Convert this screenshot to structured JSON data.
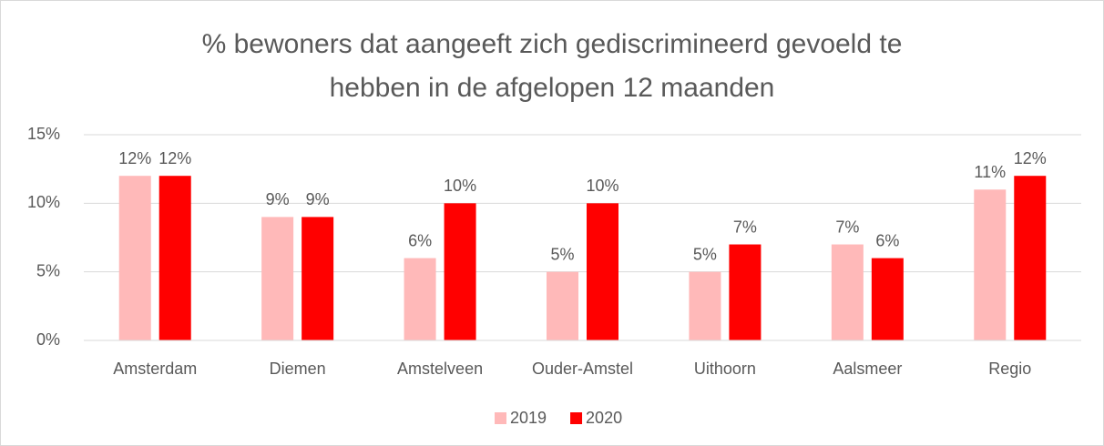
{
  "chart_data": {
    "type": "bar",
    "title": [
      "% bewoners dat aangeeft zich gediscrimineerd gevoeld te",
      "hebben in de afgelopen 12 maanden"
    ],
    "categories": [
      "Amsterdam",
      "Diemen",
      "Amstelveen",
      "Ouder-Amstel",
      "Uithoorn",
      "Aalsmeer",
      "Regio"
    ],
    "series": [
      {
        "name": "2019",
        "color": "#ffb9b9",
        "values": [
          12,
          9,
          6,
          5,
          5,
          7,
          11
        ],
        "value_labels": [
          "12%",
          "9%",
          "6%",
          "5%",
          "5%",
          "7%",
          "11%"
        ]
      },
      {
        "name": "2020",
        "color": "#ff0000",
        "values": [
          12,
          9,
          10,
          10,
          7,
          6,
          12
        ],
        "value_labels": [
          "12%",
          "9%",
          "10%",
          "10%",
          "7%",
          "6%",
          "12%"
        ]
      }
    ],
    "ylim": [
      0,
      15
    ],
    "yticks": [
      {
        "value": 0,
        "label": "0%"
      },
      {
        "value": 5,
        "label": "5%"
      },
      {
        "value": 10,
        "label": "10%"
      },
      {
        "value": 15,
        "label": "15%"
      }
    ],
    "grid": true,
    "legend": "bottom"
  }
}
